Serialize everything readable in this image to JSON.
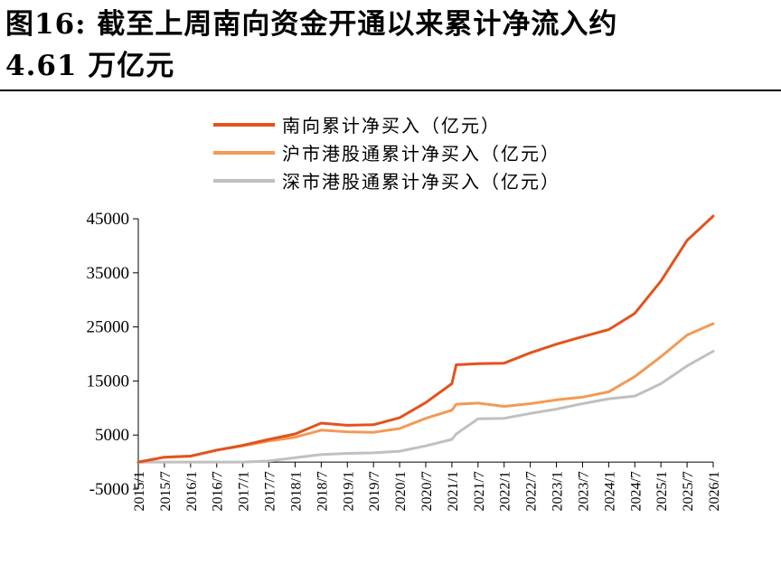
{
  "title": {
    "line1": "图16: 截至上周南向资金开通以来累计净流入约",
    "line2": "4.61 万亿元"
  },
  "chart_data": {
    "type": "line",
    "title": "图16: 截至上周南向资金开通以来累计净流入约 4.61 万亿元",
    "xlabel": "",
    "ylabel": "",
    "ylim": [
      -5000,
      45000
    ],
    "yticks": [
      "45000",
      "35000",
      "25000",
      "15000",
      "5000",
      "-5000"
    ],
    "xticks": [
      "2015/1",
      "2015/7",
      "2016/1",
      "2016/7",
      "2017/1",
      "2017/7",
      "2018/1",
      "2018/7",
      "2019/1",
      "2019/7",
      "2020/1",
      "2020/7",
      "2021/1",
      "2021/7",
      "2022/1",
      "2022/7",
      "2023/1",
      "2023/7",
      "2024/1",
      "2024/7",
      "2025/1",
      "2025/7",
      "2026/1"
    ],
    "grid": false,
    "legend_position": "top-center",
    "x": [
      "2015/1",
      "2015/7",
      "2016/1",
      "2016/7",
      "2017/1",
      "2017/7",
      "2018/1",
      "2018/7",
      "2019/1",
      "2019/7",
      "2020/1",
      "2020/7",
      "2021/1",
      "2021/2",
      "2021/7",
      "2022/1",
      "2022/7",
      "2023/1",
      "2023/7",
      "2024/1",
      "2024/7",
      "2025/1",
      "2025/7",
      "2026/1"
    ],
    "series": [
      {
        "name": "南向累计净买入（亿元）",
        "color": "#e2531e",
        "values": [
          0,
          900,
          1100,
          2200,
          3100,
          4200,
          5200,
          7200,
          6800,
          6900,
          8200,
          11000,
          14500,
          18000,
          18200,
          18300,
          20200,
          21800,
          23200,
          24500,
          27500,
          33500,
          41000,
          45500
        ]
      },
      {
        "name": "沪市港股通累计净买入（亿元）",
        "color": "#f29a55",
        "values": [
          0,
          900,
          1100,
          2200,
          3000,
          3900,
          4600,
          5900,
          5600,
          5500,
          6200,
          8100,
          9600,
          10700,
          10900,
          10300,
          10800,
          11500,
          12000,
          13000,
          15800,
          19500,
          23500,
          25600
        ]
      },
      {
        "name": "深市港股通累计净买入（亿元）",
        "color": "#c0c0c0",
        "values": [
          0,
          0,
          0,
          0,
          0,
          200,
          800,
          1400,
          1600,
          1700,
          2000,
          3000,
          4200,
          5200,
          8000,
          8100,
          9000,
          9800,
          10800,
          11700,
          12200,
          14500,
          17800,
          20500
        ]
      }
    ]
  }
}
